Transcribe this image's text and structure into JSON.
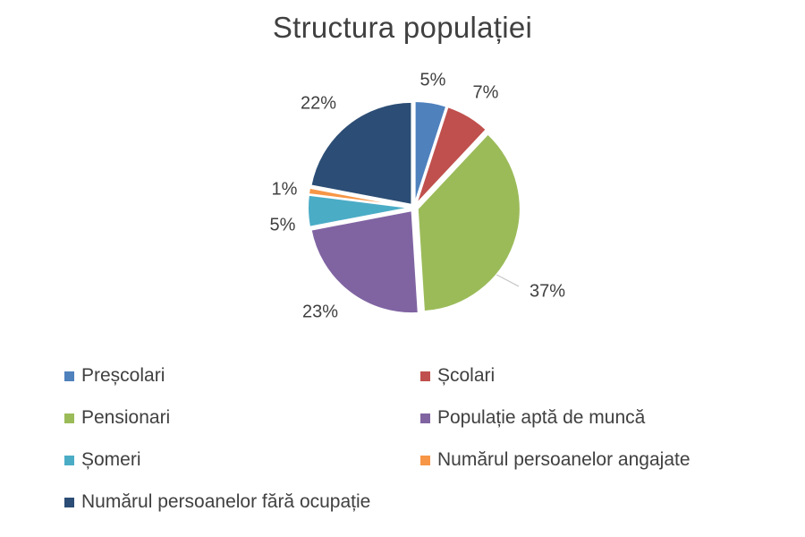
{
  "chart_data": {
    "type": "pie",
    "title": "Structura populației",
    "categories": [
      "Preșcolari",
      "Școlari",
      "Pensionari",
      "Populație aptă de muncă",
      "Șomeri",
      "Numărul persoanelor angajate",
      "Numărul persoanelor fără ocupație"
    ],
    "values": [
      5,
      7,
      37,
      23,
      5,
      1,
      22
    ],
    "labels": [
      "5%",
      "7%",
      "37%",
      "23%",
      "5%",
      "1%",
      "22%"
    ],
    "colors": [
      "#4f81bd",
      "#c0504d",
      "#9bbb59",
      "#8064a2",
      "#4bacc6",
      "#f79646",
      "#2c4d75"
    ],
    "legend_position": "bottom",
    "exploded": true
  }
}
